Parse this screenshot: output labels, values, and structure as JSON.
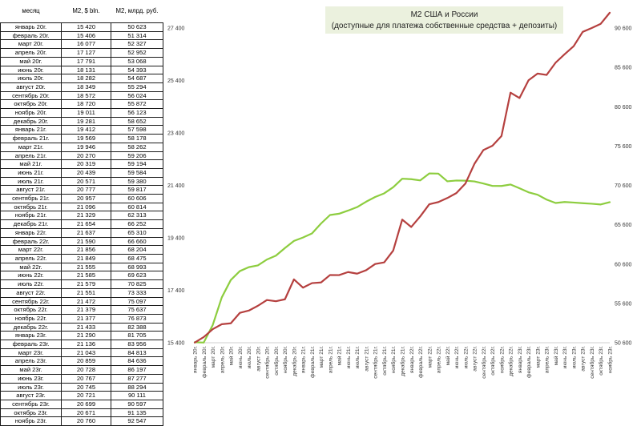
{
  "table": {
    "headers": [
      "месяц",
      "M2, $ bln.",
      "M2, млрд. руб."
    ],
    "rows": [
      [
        "январь 20г.",
        "15 420",
        "50 623"
      ],
      [
        "февраль 20г.",
        "15 406",
        "51 314"
      ],
      [
        "март 20г.",
        "16 077",
        "52 327"
      ],
      [
        "апрель 20г.",
        "17 127",
        "52 952"
      ],
      [
        "май 20г.",
        "17 791",
        "53 068"
      ],
      [
        "июнь 20г.",
        "18 131",
        "54 393"
      ],
      [
        "июль 20г.",
        "18 282",
        "54 687"
      ],
      [
        "август 20г.",
        "18 349",
        "55 294"
      ],
      [
        "сентябрь 20г.",
        "18 572",
        "56 024"
      ],
      [
        "октябрь 20г.",
        "18 720",
        "55 872"
      ],
      [
        "ноябрь 20г.",
        "19 011",
        "56 123"
      ],
      [
        "декабрь 20г.",
        "19 281",
        "58 652"
      ],
      [
        "январь 21г.",
        "19 412",
        "57 598"
      ],
      [
        "февраль 21г.",
        "19 569",
        "58 178"
      ],
      [
        "март 21г.",
        "19 946",
        "58 262"
      ],
      [
        "апрель 21г.",
        "20 270",
        "59 206"
      ],
      [
        "май 21г.",
        "20 319",
        "59 194"
      ],
      [
        "июнь 21г.",
        "20 439",
        "59 584"
      ],
      [
        "июль 21г.",
        "20 571",
        "59 380"
      ],
      [
        "август 21г.",
        "20 777",
        "59 817"
      ],
      [
        "сентябрь 21г.",
        "20 957",
        "60 606"
      ],
      [
        "октябрь 21г.",
        "21 096",
        "60 814"
      ],
      [
        "ноябрь 21г.",
        "21 329",
        "62 313"
      ],
      [
        "декабрь 21г.",
        "21 654",
        "66 252"
      ],
      [
        "январь 22г.",
        "21 637",
        "65 310"
      ],
      [
        "февраль 22г.",
        "21 590",
        "66 660"
      ],
      [
        "март 22г.",
        "21 856",
        "68 204"
      ],
      [
        "апрель 22г.",
        "21 849",
        "68 475"
      ],
      [
        "май 22г.",
        "21 555",
        "68 993"
      ],
      [
        "июнь 22г.",
        "21 585",
        "69 623"
      ],
      [
        "июль 22г.",
        "21 579",
        "70 825"
      ],
      [
        "август 22г.",
        "21 551",
        "73 333"
      ],
      [
        "сентябрь 22г.",
        "21 472",
        "75 097"
      ],
      [
        "октябрь 22г.",
        "21 379",
        "75 637"
      ],
      [
        "ноябрь 22г.",
        "21 377",
        "76 873"
      ],
      [
        "декабрь 22г.",
        "21 433",
        "82 388"
      ],
      [
        "январь 23г.",
        "21 290",
        "81 705"
      ],
      [
        "февраль 23г.",
        "21 136",
        "83 956"
      ],
      [
        "март 23г.",
        "21 043",
        "84 813"
      ],
      [
        "апрель 23г.",
        "20 859",
        "84 636"
      ],
      [
        "май 23г.",
        "20 728",
        "86 197"
      ],
      [
        "июнь 23г.",
        "20 767",
        "87 277"
      ],
      [
        "июль 23г.",
        "20 745",
        "88 294"
      ],
      [
        "август 23г.",
        "20 721",
        "90 111"
      ],
      [
        "сентябрь 23г.",
        "20 699",
        "90 597"
      ],
      [
        "октябрь 23г.",
        "20 671",
        "91 135"
      ],
      [
        "ноябрь 23г.",
        "20 760",
        "92 547"
      ]
    ]
  },
  "chart_data": {
    "type": "line",
    "title": "M2 США и России",
    "subtitle": "(доступные для платежа собственные средства + депозиты)",
    "x_tick_labels": [
      "январь 20г.",
      "февраль 20г.",
      "март 20г.",
      "апрель 20г.",
      "май 20г.",
      "июнь 20г.",
      "июль 20г.",
      "август 20г.",
      "сентябрь 20г.",
      "октябрь 20г.",
      "ноябрь 20г.",
      "декабрь 20г.",
      "январь 21г.",
      "февраль 21г.",
      "март 21г.",
      "апрель 21г.",
      "май 21г.",
      "июнь 21г.",
      "июль 21г.",
      "август 21г.",
      "сентябрь 21г.",
      "октябрь 21г.",
      "ноябрь 21г.",
      "декабрь 21г.",
      "январь 22г.",
      "февраль 22г.",
      "март 22г.",
      "апрель 22г.",
      "май 22г.",
      "июнь 22г.",
      "июль 22г.",
      "август 22г.",
      "сентябрь 22г.",
      "октябрь 22г.",
      "ноябрь 22г.",
      "декабрь 22г.",
      "январь 23г.",
      "февраль 23г.",
      "март 23г.",
      "апрель 23г.",
      "май 23г.",
      "июнь 23г.",
      "июль 23г.",
      "август 23г.",
      "сентябрь 23г.",
      "октябрь 23г.",
      "ноябрь 23г."
    ],
    "series": [
      {
        "axis": "left",
        "color": "#8dcd3f",
        "values": [
          15420,
          15406,
          16077,
          17127,
          17791,
          18131,
          18282,
          18349,
          18572,
          18720,
          19011,
          19281,
          19412,
          19569,
          19946,
          20270,
          20319,
          20439,
          20571,
          20777,
          20957,
          21096,
          21329,
          21654,
          21637,
          21590,
          21856,
          21849,
          21555,
          21585,
          21579,
          21551,
          21472,
          21379,
          21377,
          21433,
          21290,
          21136,
          21043,
          20859,
          20728,
          20767,
          20745,
          20721,
          20699,
          20671,
          20760
        ]
      },
      {
        "axis": "right",
        "color": "#b5403f",
        "values": [
          50623,
          51314,
          52327,
          52952,
          53068,
          54393,
          54687,
          55294,
          56024,
          55872,
          56123,
          58652,
          57598,
          58178,
          58262,
          59206,
          59194,
          59584,
          59380,
          59817,
          60606,
          60814,
          62313,
          66252,
          65310,
          66660,
          68204,
          68475,
          68993,
          69623,
          70825,
          73333,
          75097,
          75637,
          76873,
          82388,
          81705,
          83956,
          84813,
          84636,
          86197,
          87277,
          88294,
          90111,
          90597,
          91135,
          92547
        ]
      }
    ],
    "y_left": {
      "min": 15400,
      "max": 27400,
      "ticks": [
        "15 400",
        "17 400",
        "19 400",
        "21 400",
        "23 400",
        "25 400",
        "27 400"
      ]
    },
    "y_right": {
      "min": 50600,
      "max": 90600,
      "ticks": [
        "50 600",
        "55 600",
        "60 600",
        "65 600",
        "70 600",
        "75 600",
        "80 600",
        "85 600",
        "90 600"
      ]
    },
    "grid": false,
    "legend": "none"
  },
  "colors": {
    "title_box": "#ebf1de",
    "grid_border": "#1a1a1a"
  }
}
